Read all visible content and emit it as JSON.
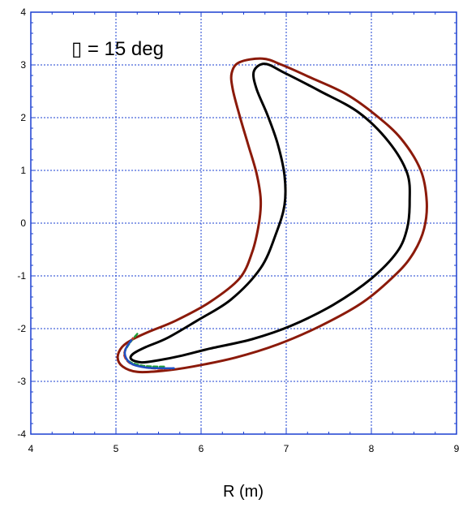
{
  "chart_data": {
    "type": "line",
    "title": "",
    "annotation": "▯  =  15 deg",
    "xlabel": "R  (m)",
    "ylabel": "",
    "xlim": [
      4,
      9
    ],
    "ylim": [
      -4,
      4
    ],
    "xticks": [
      4,
      5,
      6,
      7,
      8,
      9
    ],
    "yticks": [
      -4,
      -3,
      -2,
      -1,
      0,
      1,
      2,
      3,
      4
    ],
    "grid": true,
    "legend": "none",
    "series": [
      {
        "color": "#8b1a0a",
        "closed": true,
        "points": [
          [
            6.72,
            3.12
          ],
          [
            6.95,
            3.0
          ],
          [
            7.3,
            2.75
          ],
          [
            7.7,
            2.45
          ],
          [
            8.05,
            2.05
          ],
          [
            8.35,
            1.6
          ],
          [
            8.58,
            1.0
          ],
          [
            8.65,
            0.4
          ],
          [
            8.62,
            -0.1
          ],
          [
            8.5,
            -0.55
          ],
          [
            8.3,
            -0.95
          ],
          [
            7.9,
            -1.5
          ],
          [
            7.4,
            -1.95
          ],
          [
            6.9,
            -2.3
          ],
          [
            6.4,
            -2.55
          ],
          [
            5.9,
            -2.72
          ],
          [
            5.55,
            -2.8
          ],
          [
            5.25,
            -2.82
          ],
          [
            5.08,
            -2.72
          ],
          [
            5.02,
            -2.55
          ],
          [
            5.07,
            -2.35
          ],
          [
            5.2,
            -2.2
          ],
          [
            5.4,
            -2.05
          ],
          [
            5.7,
            -1.85
          ],
          [
            6.1,
            -1.5
          ],
          [
            6.45,
            -1.05
          ],
          [
            6.6,
            -0.55
          ],
          [
            6.68,
            0.0
          ],
          [
            6.7,
            0.45
          ],
          [
            6.65,
            0.95
          ],
          [
            6.55,
            1.5
          ],
          [
            6.45,
            2.05
          ],
          [
            6.37,
            2.55
          ],
          [
            6.36,
            2.85
          ],
          [
            6.45,
            3.05
          ]
        ]
      },
      {
        "color": "#000000",
        "closed": true,
        "points": [
          [
            6.75,
            3.02
          ],
          [
            6.98,
            2.85
          ],
          [
            7.4,
            2.5
          ],
          [
            7.85,
            2.1
          ],
          [
            8.2,
            1.55
          ],
          [
            8.42,
            0.95
          ],
          [
            8.45,
            0.4
          ],
          [
            8.42,
            -0.1
          ],
          [
            8.3,
            -0.55
          ],
          [
            8.0,
            -1.05
          ],
          [
            7.55,
            -1.55
          ],
          [
            7.05,
            -1.95
          ],
          [
            6.6,
            -2.2
          ],
          [
            6.1,
            -2.38
          ],
          [
            5.75,
            -2.52
          ],
          [
            5.5,
            -2.6
          ],
          [
            5.3,
            -2.64
          ],
          [
            5.18,
            -2.58
          ],
          [
            5.2,
            -2.48
          ],
          [
            5.35,
            -2.35
          ],
          [
            5.6,
            -2.18
          ],
          [
            5.95,
            -1.85
          ],
          [
            6.35,
            -1.45
          ],
          [
            6.7,
            -0.85
          ],
          [
            6.88,
            -0.2
          ],
          [
            6.98,
            0.35
          ],
          [
            6.98,
            0.9
          ],
          [
            6.9,
            1.5
          ],
          [
            6.78,
            2.05
          ],
          [
            6.65,
            2.55
          ],
          [
            6.62,
            2.88
          ]
        ]
      },
      {
        "color": "#1f9e3a",
        "closed": false,
        "dashed": true,
        "points": [
          [
            5.25,
            -2.1
          ],
          [
            5.15,
            -2.3
          ],
          [
            5.1,
            -2.48
          ],
          [
            5.15,
            -2.62
          ],
          [
            5.3,
            -2.7
          ],
          [
            5.45,
            -2.72
          ],
          [
            5.58,
            -2.72
          ]
        ]
      },
      {
        "color": "#c43b2a",
        "closed": false,
        "dashed": true,
        "points": [
          [
            5.2,
            -2.18
          ],
          [
            5.12,
            -2.36
          ],
          [
            5.1,
            -2.52
          ],
          [
            5.17,
            -2.66
          ],
          [
            5.33,
            -2.73
          ],
          [
            5.5,
            -2.76
          ],
          [
            5.65,
            -2.76
          ]
        ]
      },
      {
        "color": "#1e4fc4",
        "closed": false,
        "dashed": false,
        "points": [
          [
            5.18,
            -2.22
          ],
          [
            5.11,
            -2.4
          ],
          [
            5.12,
            -2.56
          ],
          [
            5.2,
            -2.68
          ],
          [
            5.36,
            -2.74
          ],
          [
            5.52,
            -2.75
          ],
          [
            5.68,
            -2.75
          ]
        ]
      }
    ]
  }
}
